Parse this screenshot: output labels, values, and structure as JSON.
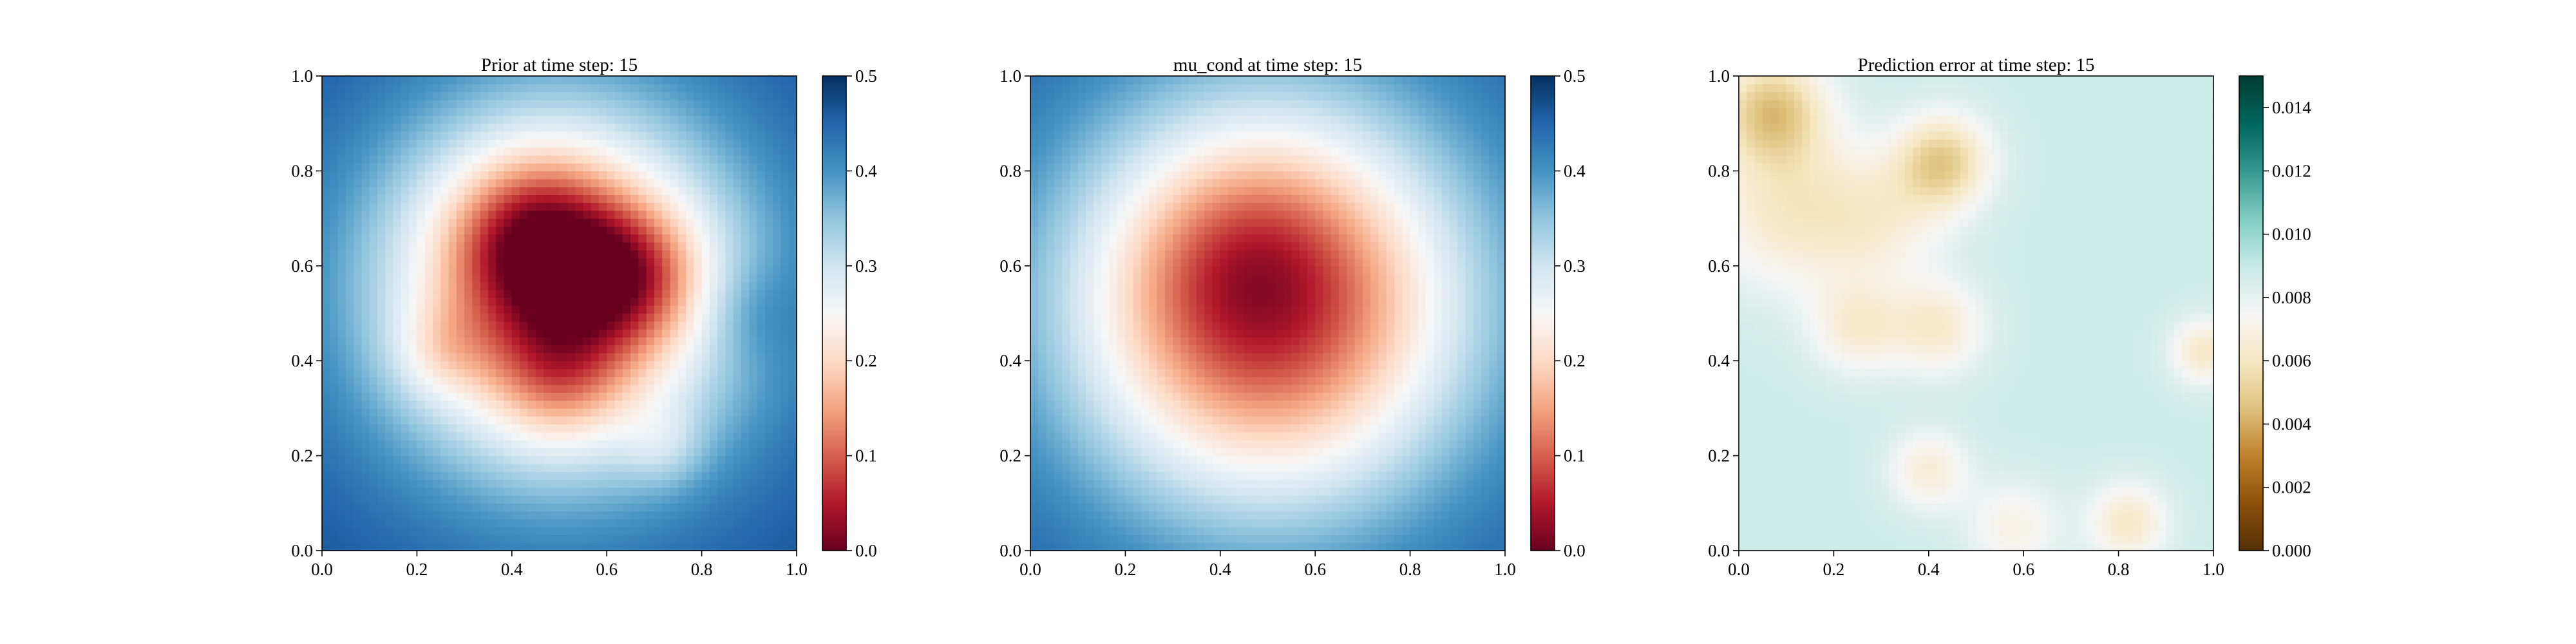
{
  "figure": {
    "background": "#ffffff"
  },
  "chart_data": [
    {
      "type": "heatmap",
      "title": "Prior at time step: 15",
      "xlabel": "",
      "ylabel": "",
      "xlim": [
        0.0,
        1.0
      ],
      "ylim": [
        0.0,
        1.0
      ],
      "x_ticks": [
        "0.0",
        "0.2",
        "0.4",
        "0.6",
        "0.8",
        "1.0"
      ],
      "y_ticks": [
        "0.0",
        "0.2",
        "0.4",
        "0.6",
        "0.8",
        "1.0"
      ],
      "colormap": "RdBu",
      "colorbar": {
        "vmin": 0.0,
        "vmax": 0.5,
        "ticks": [
          "0.0",
          "0.1",
          "0.2",
          "0.3",
          "0.4",
          "0.5"
        ]
      },
      "grid": false,
      "field": {
        "background": 0.47,
        "bumps": [
          {
            "x": 0.5,
            "y": 0.55,
            "amp": -0.36,
            "sigma": 0.28
          },
          {
            "x": 0.45,
            "y": 0.65,
            "amp": -0.18,
            "sigma": 0.12
          },
          {
            "x": 0.65,
            "y": 0.58,
            "amp": -0.14,
            "sigma": 0.1
          },
          {
            "x": 0.5,
            "y": 0.38,
            "amp": -0.1,
            "sigma": 0.1
          },
          {
            "x": 0.25,
            "y": 0.42,
            "amp": -0.06,
            "sigma": 0.07
          },
          {
            "x": 0.72,
            "y": 0.22,
            "amp": -0.05,
            "sigma": 0.06
          },
          {
            "x": 0.9,
            "y": 0.5,
            "amp": 0.04,
            "sigma": 0.08
          }
        ]
      }
    },
    {
      "type": "heatmap",
      "title": "mu_cond at time step: 15",
      "xlabel": "",
      "ylabel": "",
      "xlim": [
        0.0,
        1.0
      ],
      "ylim": [
        0.0,
        1.0
      ],
      "x_ticks": [
        "0.0",
        "0.2",
        "0.4",
        "0.6",
        "0.8",
        "1.0"
      ],
      "y_ticks": [
        "0.0",
        "0.2",
        "0.4",
        "0.6",
        "0.8",
        "1.0"
      ],
      "colormap": "RdBu",
      "colorbar": {
        "vmin": 0.0,
        "vmax": 0.5,
        "ticks": [
          "0.0",
          "0.1",
          "0.2",
          "0.3",
          "0.4",
          "0.5"
        ]
      },
      "grid": false,
      "field": {
        "background": 0.46,
        "bumps": [
          {
            "x": 0.5,
            "y": 0.52,
            "amp": -0.4,
            "sigma": 0.3
          },
          {
            "x": 0.45,
            "y": 0.62,
            "amp": -0.05,
            "sigma": 0.15
          }
        ]
      }
    },
    {
      "type": "heatmap",
      "title": "Prediction error at time step: 15",
      "xlabel": "",
      "ylabel": "",
      "xlim": [
        0.0,
        1.0
      ],
      "ylim": [
        0.0,
        1.0
      ],
      "x_ticks": [
        "0.0",
        "0.2",
        "0.4",
        "0.6",
        "0.8",
        "1.0"
      ],
      "y_ticks": [
        "0.0",
        "0.2",
        "0.4",
        "0.6",
        "0.8",
        "1.0"
      ],
      "colormap": "BrBG",
      "colorbar": {
        "vmin": 0.0,
        "vmax": 0.015,
        "ticks": [
          "0.000",
          "0.002",
          "0.004",
          "0.006",
          "0.008",
          "0.010",
          "0.012",
          "0.014"
        ]
      },
      "grid": false,
      "field": {
        "background": 0.0088,
        "bumps": [
          {
            "x": 0.07,
            "y": 0.93,
            "amp": -0.004,
            "sigma": 0.08
          },
          {
            "x": 0.1,
            "y": 0.72,
            "amp": -0.0025,
            "sigma": 0.12
          },
          {
            "x": 0.43,
            "y": 0.82,
            "amp": -0.0038,
            "sigma": 0.07
          },
          {
            "x": 0.3,
            "y": 0.7,
            "amp": -0.0018,
            "sigma": 0.1
          },
          {
            "x": 0.25,
            "y": 0.47,
            "amp": -0.0022,
            "sigma": 0.07
          },
          {
            "x": 0.42,
            "y": 0.47,
            "amp": -0.0024,
            "sigma": 0.07
          },
          {
            "x": 0.4,
            "y": 0.17,
            "amp": -0.0022,
            "sigma": 0.06
          },
          {
            "x": 0.58,
            "y": 0.05,
            "amp": -0.0018,
            "sigma": 0.07
          },
          {
            "x": 0.82,
            "y": 0.06,
            "amp": -0.0026,
            "sigma": 0.06
          },
          {
            "x": 0.98,
            "y": 0.42,
            "amp": -0.0026,
            "sigma": 0.05
          }
        ]
      }
    }
  ]
}
